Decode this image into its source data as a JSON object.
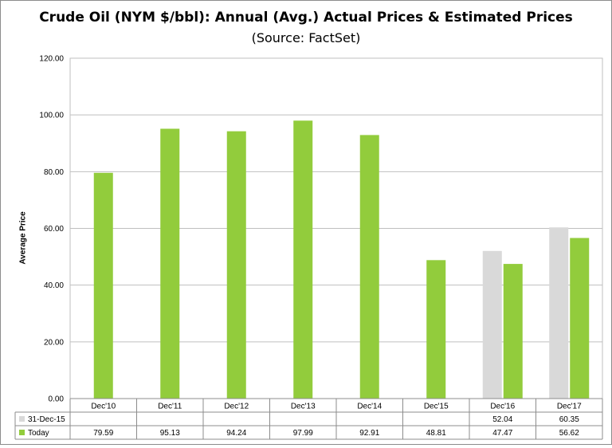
{
  "chart_data": {
    "type": "bar",
    "title": "Crude Oil (NYM $/bbl): Annual (Avg.) Actual Prices & Estimated Prices",
    "subtitle": "(Source: FactSet)",
    "ylabel": "Average Price",
    "ylim": [
      0,
      120
    ],
    "yticks": [
      "0.00",
      "20.00",
      "40.00",
      "60.00",
      "80.00",
      "100.00",
      "120.00"
    ],
    "categories": [
      "Dec'10",
      "Dec'11",
      "Dec'12",
      "Dec'13",
      "Dec'14",
      "Dec'15",
      "Dec'16",
      "Dec'17"
    ],
    "grid": true,
    "legend": "data-table",
    "series": [
      {
        "name": "31-Dec-15",
        "color": "#d9d9d9",
        "values": [
          null,
          null,
          null,
          null,
          null,
          null,
          52.04,
          60.35
        ],
        "labels": [
          "",
          "",
          "",
          "",
          "",
          "",
          "52.04",
          "60.35"
        ]
      },
      {
        "name": "Today",
        "color": "#92cc3c",
        "values": [
          79.59,
          95.13,
          94.24,
          97.99,
          92.91,
          48.81,
          47.47,
          56.62
        ],
        "labels": [
          "79.59",
          "95.13",
          "94.24",
          "97.99",
          "92.91",
          "48.81",
          "47.47",
          "56.62"
        ]
      }
    ]
  }
}
